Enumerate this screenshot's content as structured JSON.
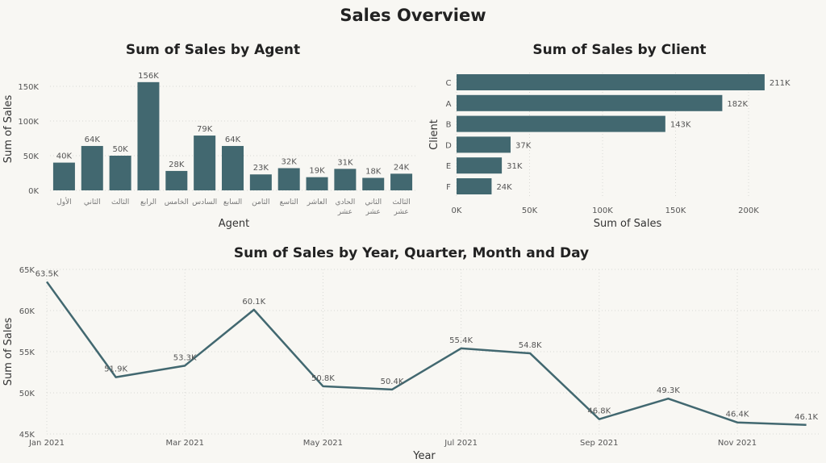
{
  "page_title": "Sales Overview",
  "colors": {
    "bar": "#426870",
    "line": "#426870",
    "background": "#f8f7f3"
  },
  "chart_data": [
    {
      "type": "bar",
      "title": "Sum of Sales by Agent",
      "xlabel": "Agent",
      "ylabel": "Sum of Sales",
      "ylim": [
        0,
        160000
      ],
      "yticks": [
        0,
        50000,
        100000,
        150000
      ],
      "ytick_labels": [
        "0K",
        "50K",
        "100K",
        "150K"
      ],
      "categories": [
        [
          "الأول"
        ],
        [
          "الثاني"
        ],
        [
          "الثالث"
        ],
        [
          "الرابع"
        ],
        [
          "الخامس"
        ],
        [
          "السادس"
        ],
        [
          "السابع"
        ],
        [
          "الثامن"
        ],
        [
          "التاسع"
        ],
        [
          "العاشر"
        ],
        [
          "الحادي",
          "عشر"
        ],
        [
          "الثاني",
          "عشر"
        ],
        [
          "الثالث",
          "عشر"
        ]
      ],
      "values": [
        40000,
        64000,
        50000,
        156000,
        28000,
        79000,
        64000,
        23000,
        32000,
        19000,
        31000,
        18000,
        24000
      ],
      "data_labels": [
        "40K",
        "64K",
        "50K",
        "156K",
        "28K",
        "79K",
        "64K",
        "23K",
        "32K",
        "19K",
        "31K",
        "18K",
        "24K"
      ]
    },
    {
      "type": "bar",
      "orientation": "horizontal",
      "title": "Sum of Sales by Client",
      "xlabel": "Sum of Sales",
      "ylabel": "Client",
      "xlim": [
        0,
        210000
      ],
      "xticks": [
        0,
        50000,
        100000,
        150000,
        200000
      ],
      "xtick_labels": [
        "0K",
        "50K",
        "100K",
        "150K",
        "200K"
      ],
      "categories": [
        "C",
        "A",
        "B",
        "D",
        "E",
        "F"
      ],
      "values": [
        211000,
        182000,
        143000,
        37000,
        31000,
        24000
      ],
      "data_labels": [
        "211K",
        "182K",
        "143K",
        "37K",
        "31K",
        "24K"
      ]
    },
    {
      "type": "line",
      "title": "Sum of Sales by Year, Quarter, Month and Day",
      "xlabel": "Year",
      "ylabel": "Sum of Sales",
      "ylim": [
        45000,
        65000
      ],
      "yticks": [
        45000,
        50000,
        55000,
        60000,
        65000
      ],
      "ytick_labels": [
        "45K",
        "50K",
        "55K",
        "60K",
        "65K"
      ],
      "xtick_labels": [
        "Jan 2021",
        "Mar 2021",
        "May 2021",
        "Jul 2021",
        "Sep 2021",
        "Nov 2021"
      ],
      "xtick_months": [
        0,
        2,
        4,
        6,
        8,
        10
      ],
      "x": [
        0,
        1,
        2,
        3,
        4,
        5,
        6,
        7,
        8,
        9,
        10,
        11
      ],
      "values": [
        63500,
        51900,
        53300,
        60100,
        50800,
        50400,
        55400,
        54800,
        46800,
        49300,
        46400,
        46100
      ],
      "data_labels": [
        "63.5K",
        "51.9K",
        "53.3K",
        "60.1K",
        "50.8K",
        "50.4K",
        "55.4K",
        "54.8K",
        "46.8K",
        "49.3K",
        "46.4K",
        "46.1K"
      ]
    }
  ]
}
